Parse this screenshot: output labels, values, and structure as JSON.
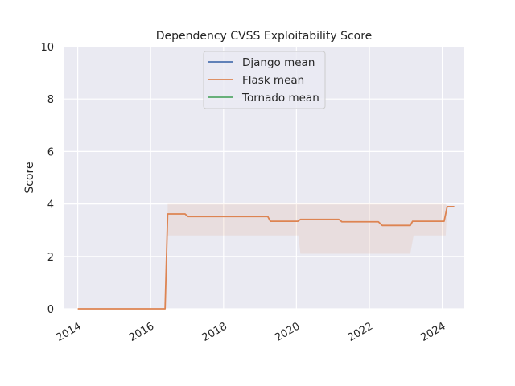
{
  "chart_data": {
    "type": "line",
    "title": "Dependency CVSS Exploitability Score",
    "xlabel": "",
    "ylabel": "Score",
    "xlim": [
      "2013-08-20",
      "2024-08-01"
    ],
    "ylim": [
      0,
      10
    ],
    "x_ticks": [
      "2014",
      "2016",
      "2018",
      "2020",
      "2022",
      "2024"
    ],
    "y_ticks": [
      "0",
      "2",
      "4",
      "6",
      "8",
      "10"
    ],
    "grid": true,
    "legend_position": "top-center",
    "series": [
      {
        "name": "Django mean",
        "color": "#4c72b0",
        "points": []
      },
      {
        "name": "Flask mean",
        "color": "#dd8452",
        "points": [
          [
            "2014-01-01",
            0.0
          ],
          [
            "2016-05-25",
            0.0
          ],
          [
            "2016-06-20",
            3.62
          ],
          [
            "2016-12-10",
            3.62
          ],
          [
            "2017-01-10",
            3.52
          ],
          [
            "2019-03-20",
            3.52
          ],
          [
            "2019-04-15",
            3.34
          ],
          [
            "2020-01-15",
            3.34
          ],
          [
            "2020-02-10",
            3.41
          ],
          [
            "2021-03-01",
            3.41
          ],
          [
            "2021-04-01",
            3.32
          ],
          [
            "2022-04-01",
            3.32
          ],
          [
            "2022-05-10",
            3.18
          ],
          [
            "2023-02-15",
            3.18
          ],
          [
            "2023-03-10",
            3.34
          ],
          [
            "2024-01-20",
            3.34
          ],
          [
            "2024-02-20",
            3.9
          ],
          [
            "2024-05-01",
            3.9
          ]
        ],
        "band": [
          [
            "2016-06-20",
            2.8,
            4.0
          ],
          [
            "2020-01-20",
            2.8,
            4.0
          ],
          [
            "2020-02-10",
            2.1,
            4.0
          ],
          [
            "2023-02-15",
            2.1,
            4.0
          ],
          [
            "2023-03-20",
            2.8,
            4.0
          ],
          [
            "2024-02-05",
            2.8,
            4.0
          ],
          [
            "2024-02-20",
            3.9,
            3.9
          ]
        ]
      },
      {
        "name": "Tornado mean",
        "color": "#55a868",
        "points": []
      }
    ]
  }
}
